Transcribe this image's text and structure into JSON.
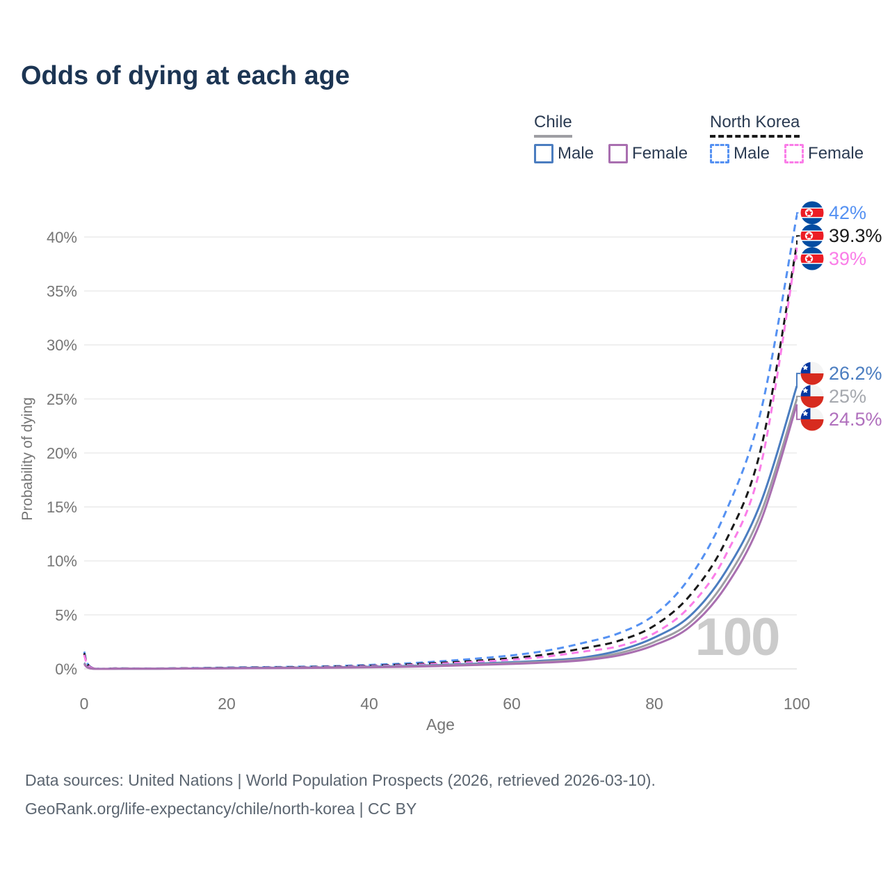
{
  "title": "Odds of dying at each age",
  "legend": {
    "groups": [
      {
        "name": "Chile",
        "underline": {
          "style": "solid",
          "color": "#9e9ea3"
        },
        "items": [
          {
            "label": "Male",
            "color": "#4b7dc0",
            "dash": "solid"
          },
          {
            "label": "Female",
            "color": "#a96fb0",
            "dash": "solid"
          }
        ]
      },
      {
        "name": "North Korea",
        "underline": {
          "style": "dashed",
          "color": "#1a1a1a"
        },
        "items": [
          {
            "label": "Male",
            "color": "#5591f2",
            "dash": "dashed"
          },
          {
            "label": "Female",
            "color": "#fa7de8",
            "dash": "dashed"
          }
        ]
      }
    ]
  },
  "chart_data": {
    "type": "line",
    "title": "Odds of dying at each age",
    "xlabel": "Age",
    "ylabel": "Probability of dying",
    "xlim": [
      0,
      100
    ],
    "ylim": [
      0,
      43
    ],
    "grid": "horizontal",
    "watermark": "100",
    "x_ticks": [
      {
        "value": 0,
        "label": "0"
      },
      {
        "value": 20,
        "label": "20"
      },
      {
        "value": 40,
        "label": "40"
      },
      {
        "value": 60,
        "label": "60"
      },
      {
        "value": 80,
        "label": "80"
      },
      {
        "value": 100,
        "label": "100"
      }
    ],
    "y_ticks": [
      {
        "value": 0,
        "label": "0%"
      },
      {
        "value": 5,
        "label": "5%"
      },
      {
        "value": 10,
        "label": "10%"
      },
      {
        "value": 15,
        "label": "15%"
      },
      {
        "value": 20,
        "label": "20%"
      },
      {
        "value": 25,
        "label": "25%"
      },
      {
        "value": 30,
        "label": "30%"
      },
      {
        "value": 35,
        "label": "35%"
      },
      {
        "value": 40,
        "label": "40%"
      }
    ],
    "x": [
      0,
      1,
      5,
      10,
      15,
      20,
      25,
      30,
      35,
      40,
      45,
      50,
      55,
      60,
      65,
      70,
      75,
      80,
      85,
      90,
      95,
      100
    ],
    "series": [
      {
        "name": "North Korea Male",
        "country": "North Korea",
        "flag": "kp",
        "sex": "male",
        "color": "#5591f2",
        "label_color": "#5591f2",
        "dash": "dashed",
        "end_label": "42%",
        "end_value": 42,
        "values": [
          1.6,
          0.15,
          0.05,
          0.04,
          0.07,
          0.12,
          0.16,
          0.2,
          0.26,
          0.36,
          0.5,
          0.7,
          0.95,
          1.25,
          1.7,
          2.4,
          3.3,
          5.0,
          8.5,
          14.5,
          24.0,
          42.0
        ]
      },
      {
        "name": "North Korea",
        "country": "North Korea",
        "flag": "kp",
        "sex": "both",
        "color": "#1a1a1a",
        "label_color": "#1a1a1a",
        "dash": "dashed",
        "end_label": "39.3%",
        "end_value": 39.3,
        "values": [
          1.45,
          0.13,
          0.045,
          0.035,
          0.06,
          0.1,
          0.13,
          0.16,
          0.21,
          0.29,
          0.4,
          0.56,
          0.75,
          1.0,
          1.35,
          1.9,
          2.6,
          4.0,
          6.8,
          11.8,
          20.5,
          39.3
        ]
      },
      {
        "name": "North Korea Female",
        "country": "North Korea",
        "flag": "kp",
        "sex": "female",
        "color": "#fa7de8",
        "label_color": "#fa7de8",
        "dash": "dashed",
        "end_label": "39%",
        "end_value": 39,
        "values": [
          1.3,
          0.11,
          0.04,
          0.03,
          0.05,
          0.08,
          0.11,
          0.14,
          0.18,
          0.25,
          0.34,
          0.48,
          0.65,
          0.85,
          1.15,
          1.6,
          2.1,
          3.3,
          5.8,
          10.5,
          19.0,
          39.0
        ]
      },
      {
        "name": "Chile Male",
        "country": "Chile",
        "flag": "cl",
        "sex": "male",
        "color": "#4b7dc0",
        "label_color": "#4b7dc0",
        "dash": "solid",
        "end_label": "26.2%",
        "end_value": 26.2,
        "values": [
          0.55,
          0.04,
          0.02,
          0.02,
          0.04,
          0.08,
          0.1,
          0.12,
          0.15,
          0.2,
          0.27,
          0.37,
          0.48,
          0.62,
          0.78,
          1.05,
          1.7,
          2.9,
          4.9,
          9.0,
          15.5,
          26.2
        ]
      },
      {
        "name": "Chile",
        "country": "Chile",
        "flag": "cl",
        "sex": "both",
        "color": "#9e9ea3",
        "label_color": "#a5a8ae",
        "dash": "solid",
        "end_label": "25%",
        "end_value": 25,
        "values": [
          0.5,
          0.035,
          0.018,
          0.018,
          0.035,
          0.06,
          0.08,
          0.1,
          0.13,
          0.17,
          0.23,
          0.32,
          0.42,
          0.54,
          0.68,
          0.92,
          1.45,
          2.5,
          4.3,
          8.2,
          14.5,
          25.0
        ]
      },
      {
        "name": "Chile Female",
        "country": "Chile",
        "flag": "cl",
        "sex": "female",
        "color": "#a96fb0",
        "label_color": "#b070bd",
        "dash": "solid",
        "end_label": "24.5%",
        "end_value": 24.5,
        "values": [
          0.45,
          0.03,
          0.015,
          0.015,
          0.03,
          0.05,
          0.07,
          0.08,
          0.11,
          0.14,
          0.19,
          0.27,
          0.36,
          0.46,
          0.59,
          0.8,
          1.25,
          2.2,
          3.9,
          7.6,
          13.8,
          24.5
        ]
      }
    ]
  },
  "footer": {
    "line1": "Data sources: United Nations | World Population Prospects (2026, retrieved 2026-03-10).",
    "line2": "GeoRank.org/life-expectancy/chile/north-korea | CC BY"
  }
}
